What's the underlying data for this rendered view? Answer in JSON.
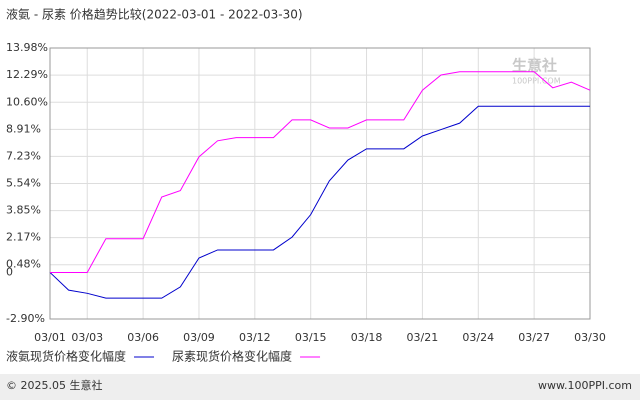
{
  "chart_data": {
    "type": "line",
    "title": "液氨 - 尿素  价格趋势比较(2022-03-01 - 2022-03-30)",
    "categories": [
      "03/01",
      null,
      "03/03",
      null,
      null,
      "03/06",
      null,
      null,
      "03/09",
      null,
      null,
      "03/12",
      null,
      null,
      "03/15",
      null,
      null,
      "03/18",
      null,
      null,
      "03/21",
      null,
      null,
      "03/24",
      null,
      null,
      "03/27",
      null,
      null,
      "03/30"
    ],
    "series": [
      {
        "name": "液氨现货价格变化幅度",
        "color": "#0000cc",
        "values": [
          0,
          -1.1,
          -1.3,
          -1.6,
          -1.6,
          -1.6,
          -1.6,
          -0.9,
          0.9,
          1.4,
          1.4,
          1.4,
          1.4,
          2.2,
          3.6,
          5.7,
          7.0,
          7.7,
          7.7,
          7.7,
          8.5,
          8.9,
          9.3,
          10.35,
          10.35,
          10.35,
          10.35,
          10.35,
          10.35,
          10.35
        ]
      },
      {
        "name": "尿素现货价格变化幅度",
        "color": "#ff00ff",
        "values": [
          0,
          0,
          0,
          2.1,
          2.1,
          2.1,
          4.7,
          5.1,
          7.2,
          8.2,
          8.4,
          8.4,
          8.4,
          9.5,
          9.5,
          9.0,
          9.0,
          9.5,
          9.5,
          9.5,
          11.35,
          12.3,
          12.5,
          12.5,
          12.5,
          12.5,
          12.5,
          11.5,
          11.85,
          11.35
        ]
      }
    ],
    "ylim": [
      -2.9,
      13.98
    ],
    "yticks": [
      {
        "value": 13.98,
        "label": "13.98%"
      },
      {
        "value": 12.29,
        "label": "12.29%"
      },
      {
        "value": 10.6,
        "label": "10.60%"
      },
      {
        "value": 8.91,
        "label": "8.91%"
      },
      {
        "value": 7.23,
        "label": "7.23%"
      },
      {
        "value": 5.54,
        "label": "5.54%"
      },
      {
        "value": 3.85,
        "label": "3.85%"
      },
      {
        "value": 2.17,
        "label": "2.17%"
      },
      {
        "value": 0.48,
        "label": "0.48%"
      },
      0,
      {
        "value": -2.9,
        "label": "-2.90%"
      }
    ],
    "grid": true,
    "watermark": {
      "name": "生意社",
      "site": "100PPI.COM"
    },
    "footer": {
      "left": "© 2025.05 生意社",
      "right": "www.100PPI.com"
    }
  }
}
